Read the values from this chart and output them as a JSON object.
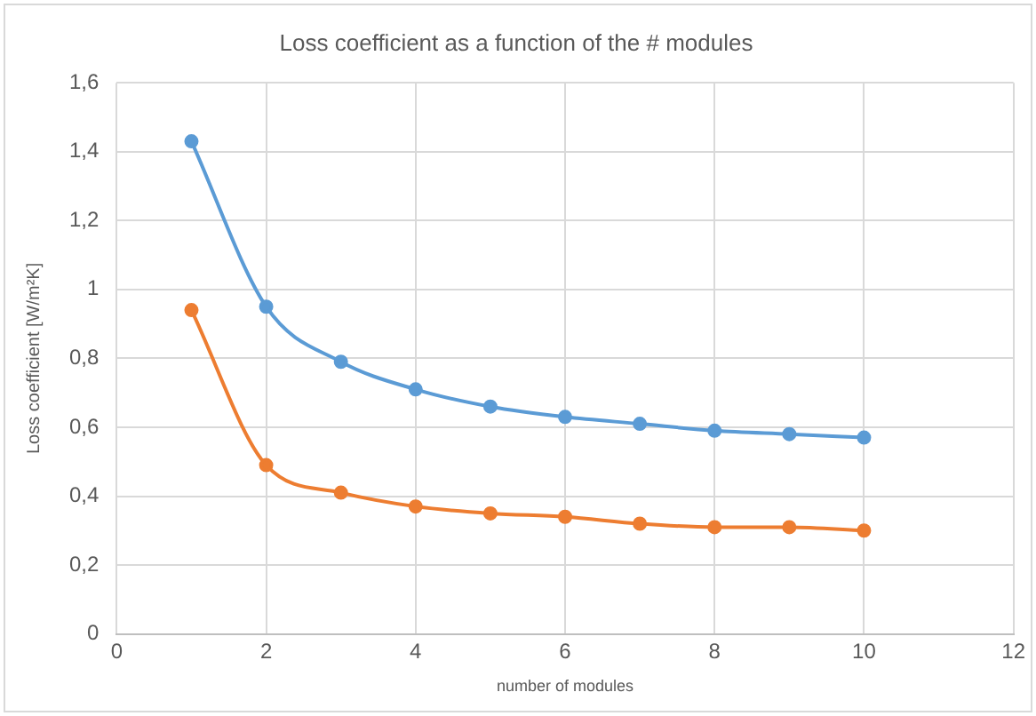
{
  "chart_data": {
    "type": "line",
    "title": "Loss coefficient as a function of the # modules",
    "xlabel": "number of modules",
    "ylabel": "Loss coefficient [W/m²K]",
    "x": [
      1,
      2,
      3,
      4,
      5,
      6,
      7,
      8,
      9,
      10
    ],
    "series": [
      {
        "color": "#5b9bd5",
        "values": [
          1.43,
          0.95,
          0.79,
          0.71,
          0.66,
          0.63,
          0.61,
          0.59,
          0.58,
          0.57
        ]
      },
      {
        "color": "#ed7d31",
        "values": [
          0.94,
          0.49,
          0.41,
          0.37,
          0.35,
          0.34,
          0.32,
          0.31,
          0.31,
          0.3
        ]
      }
    ],
    "xlim": [
      0,
      12
    ],
    "xticks": [
      0,
      2,
      4,
      6,
      8,
      10,
      12
    ],
    "ylim": [
      0,
      1.6
    ],
    "yticks": [
      0,
      {
        "value": 0.2,
        "label": "0,2"
      },
      {
        "value": 0.4,
        "label": "0,4"
      },
      {
        "value": 0.6,
        "label": "0,6"
      },
      {
        "value": 0.8,
        "label": "0,8"
      },
      1,
      {
        "value": 1.2,
        "label": "1,2"
      },
      {
        "value": 1.4,
        "label": "1,4"
      },
      {
        "value": 1.6,
        "label": "1,6"
      }
    ],
    "grid": true,
    "legend": false,
    "marker": "circle",
    "line_style": "solid"
  }
}
